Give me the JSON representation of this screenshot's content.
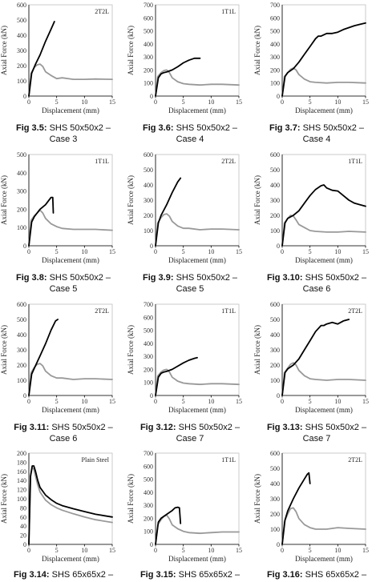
{
  "figures": [
    {
      "fig": "Fig 3.5:",
      "line1": "SHS 50x50x2 –",
      "line2": "Case 3"
    },
    {
      "fig": "Fig 3.6:",
      "line1": "SHS 50x50x2 –",
      "line2": "Case 4"
    },
    {
      "fig": "Fig 3.7:",
      "line1": "SHS 50x50x2 –",
      "line2": "Case 4"
    },
    {
      "fig": "Fig 3.8:",
      "line1": "SHS 50x50x2 –",
      "line2": "Case 5"
    },
    {
      "fig": "Fig 3.9:",
      "line1": "SHS 50x50x2 –",
      "line2": "Case 5"
    },
    {
      "fig": "Fig 3.10:",
      "line1": "SHS 50x50x2 –",
      "line2": "Case 6"
    },
    {
      "fig": "Fig 3.11:",
      "line1": "SHS 50x50x2 –",
      "line2": "Case 6"
    },
    {
      "fig": "Fig 3.12:",
      "line1": "SHS 50x50x2 –",
      "line2": "Case 7"
    },
    {
      "fig": "Fig 3.13:",
      "line1": "SHS 50x50x2 –",
      "line2": "Case 7"
    },
    {
      "fig": "Fig 3.14:",
      "line1": "SHS 65x65x2 –",
      "line2": ""
    },
    {
      "fig": "Fig 3.15:",
      "line1": "SHS 65x65x2 –",
      "line2": ""
    },
    {
      "fig": "Fig 3.16:",
      "line1": "SHS 65x65x2 –",
      "line2": ""
    }
  ],
  "chart_data": [
    {
      "type": "line",
      "label": "2T2L",
      "xlabel": "Displacement (mm)",
      "ylabel": "Axial Force (kN)",
      "xlim": [
        0,
        15
      ],
      "ylim": [
        0,
        600
      ],
      "xticks": [
        0,
        5,
        10,
        15
      ],
      "yticks": [
        0,
        100,
        200,
        300,
        400,
        500,
        600
      ],
      "series": [
        {
          "color": "#000000",
          "x": [
            0,
            0.5,
            1.2,
            2,
            3,
            4,
            4.6
          ],
          "y": [
            0,
            150,
            210,
            270,
            360,
            440,
            490
          ]
        },
        {
          "color": "#999999",
          "x": [
            0,
            0.4,
            1,
            1.5,
            2,
            2.5,
            3,
            4,
            5,
            6,
            8,
            10,
            12,
            15
          ],
          "y": [
            0,
            150,
            190,
            205,
            210,
            195,
            160,
            135,
            115,
            120,
            110,
            110,
            112,
            110
          ]
        }
      ]
    },
    {
      "type": "line",
      "label": "1T1L",
      "xlabel": "Displacement (mm)",
      "ylabel": "Axial Force (kN)",
      "xlim": [
        0,
        15
      ],
      "ylim": [
        0,
        700
      ],
      "xticks": [
        0,
        5,
        10,
        15
      ],
      "yticks": [
        0,
        100,
        200,
        300,
        400,
        500,
        600,
        700
      ],
      "series": [
        {
          "color": "#000000",
          "x": [
            0,
            0.5,
            1,
            1.5,
            2,
            3,
            4,
            5,
            6,
            7,
            8
          ],
          "y": [
            0,
            140,
            170,
            180,
            185,
            200,
            225,
            255,
            275,
            290,
            290
          ]
        },
        {
          "color": "#999999",
          "x": [
            0,
            0.4,
            1,
            1.5,
            2,
            2.5,
            3,
            4,
            5,
            6,
            8,
            10,
            12,
            15
          ],
          "y": [
            0,
            150,
            180,
            195,
            200,
            180,
            140,
            110,
            95,
            90,
            85,
            90,
            90,
            85
          ]
        }
      ]
    },
    {
      "type": "line",
      "label": "",
      "xlabel": "Displacement (mm)",
      "ylabel": "Axial Force (kN)",
      "xlim": [
        0,
        15
      ],
      "ylim": [
        0,
        700
      ],
      "xticks": [
        0,
        5,
        10,
        15
      ],
      "yticks": [
        0,
        100,
        200,
        300,
        400,
        500,
        600,
        700
      ],
      "series": [
        {
          "color": "#000000",
          "x": [
            0,
            0.5,
            1,
            2,
            3,
            4,
            5,
            6,
            6.5,
            7,
            8,
            9,
            10,
            11,
            12,
            13,
            14,
            15
          ],
          "y": [
            0,
            150,
            180,
            210,
            260,
            320,
            380,
            440,
            460,
            460,
            480,
            480,
            490,
            510,
            525,
            540,
            550,
            560
          ]
        },
        {
          "color": "#999999",
          "x": [
            0,
            0.4,
            1,
            1.5,
            2,
            2.5,
            3,
            4,
            5,
            6,
            8,
            10,
            12,
            15
          ],
          "y": [
            0,
            150,
            180,
            205,
            215,
            200,
            165,
            130,
            110,
            105,
            100,
            105,
            105,
            100
          ]
        }
      ]
    },
    {
      "type": "line",
      "label": "1T1L",
      "xlabel": "Displacement (mm)",
      "ylabel": "Axial Force (kN)",
      "xlim": [
        0,
        15
      ],
      "ylim": [
        0,
        500
      ],
      "xticks": [
        0,
        5,
        10,
        15
      ],
      "yticks": [
        0,
        100,
        200,
        300,
        400,
        500
      ],
      "series": [
        {
          "color": "#000000",
          "x": [
            0,
            0.5,
            1,
            2,
            3,
            3.5,
            4,
            4.3,
            4.4
          ],
          "y": [
            0,
            130,
            160,
            200,
            225,
            245,
            265,
            265,
            180
          ]
        },
        {
          "color": "#999999",
          "x": [
            0,
            0.4,
            1,
            1.5,
            2,
            2.5,
            3,
            4,
            5,
            6,
            8,
            10,
            12,
            15
          ],
          "y": [
            0,
            140,
            165,
            180,
            195,
            180,
            150,
            120,
            105,
            95,
            90,
            90,
            90,
            85
          ]
        }
      ]
    },
    {
      "type": "line",
      "label": "2T2L",
      "xlabel": "Displacement (mm)",
      "ylabel": "Axial Force (kN)",
      "xlim": [
        0,
        15
      ],
      "ylim": [
        0,
        600
      ],
      "xticks": [
        0,
        5,
        10,
        15
      ],
      "yticks": [
        0,
        100,
        200,
        300,
        400,
        500,
        600
      ],
      "series": [
        {
          "color": "#000000",
          "x": [
            0,
            0.5,
            1,
            2,
            3,
            4,
            4.5
          ],
          "y": [
            0,
            150,
            200,
            270,
            350,
            420,
            445
          ]
        },
        {
          "color": "#999999",
          "x": [
            0,
            0.4,
            1,
            1.5,
            2,
            2.5,
            3,
            4,
            5,
            6,
            8,
            10,
            12,
            15
          ],
          "y": [
            0,
            150,
            185,
            205,
            210,
            195,
            160,
            130,
            115,
            115,
            105,
            110,
            110,
            105
          ]
        }
      ]
    },
    {
      "type": "line",
      "label": "1T1L",
      "xlabel": "Displacement (mm)",
      "ylabel": "Axial Force (kN)",
      "xlim": [
        0,
        15
      ],
      "ylim": [
        0,
        600
      ],
      "xticks": [
        0,
        5,
        10,
        15
      ],
      "yticks": [
        0,
        100,
        200,
        300,
        400,
        500,
        600
      ],
      "series": [
        {
          "color": "#000000",
          "x": [
            0,
            0.5,
            1,
            2,
            3,
            4,
            5,
            6,
            7,
            7.5,
            8,
            9,
            10,
            11,
            12,
            13,
            14,
            15
          ],
          "y": [
            0,
            150,
            180,
            200,
            230,
            280,
            330,
            370,
            395,
            400,
            380,
            365,
            360,
            330,
            300,
            280,
            270,
            260
          ]
        },
        {
          "color": "#999999",
          "x": [
            0,
            0.4,
            1,
            1.5,
            2,
            2.5,
            3,
            4,
            5,
            6,
            8,
            10,
            12,
            15
          ],
          "y": [
            0,
            150,
            180,
            200,
            195,
            170,
            140,
            120,
            100,
            95,
            90,
            90,
            95,
            90
          ]
        }
      ]
    },
    {
      "type": "line",
      "label": "2T2L",
      "xlabel": "Displacement (mm)",
      "ylabel": "Axial Force (kN)",
      "xlim": [
        0,
        15
      ],
      "ylim": [
        0,
        600
      ],
      "xticks": [
        0,
        5,
        10,
        15
      ],
      "yticks": [
        0,
        100,
        200,
        300,
        400,
        500,
        600
      ],
      "series": [
        {
          "color": "#000000",
          "x": [
            0,
            0.5,
            1,
            2,
            3,
            4,
            4.8,
            5.2
          ],
          "y": [
            0,
            140,
            180,
            260,
            340,
            430,
            490,
            500
          ]
        },
        {
          "color": "#999999",
          "x": [
            0,
            0.4,
            1,
            1.5,
            2,
            2.5,
            3,
            4,
            5,
            6,
            8,
            10,
            12,
            15
          ],
          "y": [
            0,
            150,
            185,
            205,
            210,
            195,
            160,
            130,
            115,
            115,
            105,
            110,
            110,
            105
          ]
        }
      ]
    },
    {
      "type": "line",
      "label": "1T1L",
      "xlabel": "Displacement (mm)",
      "ylabel": "Axial Force (kN)",
      "xlim": [
        0,
        15
      ],
      "ylim": [
        0,
        700
      ],
      "xticks": [
        0,
        5,
        10,
        15
      ],
      "yticks": [
        0,
        100,
        200,
        300,
        400,
        500,
        600,
        700
      ],
      "series": [
        {
          "color": "#000000",
          "x": [
            0,
            0.5,
            1,
            1.5,
            2,
            3,
            4,
            5,
            6,
            7,
            7.5
          ],
          "y": [
            0,
            140,
            170,
            180,
            185,
            200,
            225,
            250,
            270,
            285,
            290
          ]
        },
        {
          "color": "#999999",
          "x": [
            0,
            0.4,
            1,
            1.5,
            2,
            2.5,
            3,
            4,
            5,
            6,
            8,
            10,
            12,
            15
          ],
          "y": [
            0,
            150,
            180,
            195,
            200,
            180,
            140,
            110,
            95,
            90,
            85,
            90,
            90,
            85
          ]
        }
      ]
    },
    {
      "type": "line",
      "label": "2T2L",
      "xlabel": "Displacement (mm)",
      "ylabel": "Axial Force (kN)",
      "xlim": [
        0,
        15
      ],
      "ylim": [
        0,
        600
      ],
      "xticks": [
        0,
        5,
        10,
        15
      ],
      "yticks": [
        0,
        100,
        200,
        300,
        400,
        500,
        600
      ],
      "series": [
        {
          "color": "#000000",
          "x": [
            0,
            0.5,
            1,
            2,
            3,
            4,
            5,
            6,
            7,
            7.5,
            8,
            9,
            10,
            11,
            12
          ],
          "y": [
            0,
            150,
            175,
            200,
            240,
            300,
            360,
            420,
            460,
            460,
            470,
            480,
            470,
            490,
            500
          ]
        },
        {
          "color": "#999999",
          "x": [
            0,
            0.4,
            1,
            1.5,
            2,
            2.5,
            3,
            4,
            5,
            6,
            8,
            10,
            12,
            15
          ],
          "y": [
            0,
            150,
            180,
            205,
            215,
            200,
            165,
            130,
            110,
            105,
            100,
            105,
            105,
            100
          ]
        }
      ]
    },
    {
      "type": "line",
      "label": "Plain Steel",
      "xlabel": "Displacement (mm)",
      "ylabel": "Axial Force (kN)",
      "xlim": [
        0,
        15
      ],
      "ylim": [
        0,
        200
      ],
      "xticks": [
        0,
        5,
        10,
        15
      ],
      "yticks": [
        0,
        20,
        40,
        60,
        80,
        100,
        120,
        140,
        160,
        180,
        200
      ],
      "series": [
        {
          "color": "#000000",
          "x": [
            0,
            0.3,
            0.6,
            0.9,
            1.2,
            1.6,
            2,
            3,
            4,
            5,
            6,
            8,
            10,
            12,
            15
          ],
          "y": [
            0,
            150,
            172,
            172,
            160,
            140,
            125,
            108,
            98,
            90,
            85,
            78,
            72,
            66,
            60
          ]
        },
        {
          "color": "#999999",
          "x": [
            0,
            0.3,
            0.6,
            0.9,
            1.2,
            1.6,
            2,
            3,
            4,
            5,
            6,
            8,
            10,
            12,
            15
          ],
          "y": [
            0,
            148,
            168,
            165,
            150,
            130,
            115,
            97,
            87,
            80,
            75,
            67,
            60,
            54,
            48
          ]
        }
      ]
    },
    {
      "type": "line",
      "label": "1T1L",
      "xlabel": "Displacement (mm)",
      "ylabel": "Axial Force (kN)",
      "xlim": [
        0,
        15
      ],
      "ylim": [
        0,
        700
      ],
      "xticks": [
        0,
        5,
        10,
        15
      ],
      "yticks": [
        0,
        100,
        200,
        300,
        400,
        500,
        600,
        700
      ],
      "series": [
        {
          "color": "#000000",
          "x": [
            0,
            0.5,
            1,
            2,
            3,
            3.5,
            4,
            4.3,
            4.5
          ],
          "y": [
            0,
            170,
            200,
            230,
            260,
            280,
            285,
            280,
            160
          ]
        },
        {
          "color": "#999999",
          "x": [
            0,
            0.4,
            1,
            1.5,
            2,
            2.5,
            3,
            4,
            5,
            6,
            8,
            10,
            12,
            15
          ],
          "y": [
            0,
            150,
            190,
            215,
            225,
            195,
            150,
            120,
            100,
            90,
            85,
            90,
            95,
            95
          ]
        }
      ]
    },
    {
      "type": "line",
      "label": "2T2L",
      "xlabel": "Displacement (mm)",
      "ylabel": "Axial Force (kN)",
      "xlim": [
        0,
        15
      ],
      "ylim": [
        0,
        600
      ],
      "xticks": [
        0,
        5,
        10,
        15
      ],
      "yticks": [
        0,
        100,
        200,
        300,
        400,
        500,
        600
      ],
      "series": [
        {
          "color": "#000000",
          "x": [
            0,
            0.5,
            1,
            2,
            3,
            4,
            4.5,
            4.8,
            5
          ],
          "y": [
            0,
            160,
            220,
            300,
            370,
            430,
            460,
            470,
            400
          ]
        },
        {
          "color": "#999999",
          "x": [
            0,
            0.4,
            1,
            1.5,
            2,
            2.5,
            3,
            4,
            5,
            6,
            8,
            10,
            12,
            15
          ],
          "y": [
            0,
            150,
            200,
            235,
            240,
            215,
            170,
            130,
            110,
            100,
            100,
            110,
            105,
            100
          ]
        }
      ]
    }
  ]
}
